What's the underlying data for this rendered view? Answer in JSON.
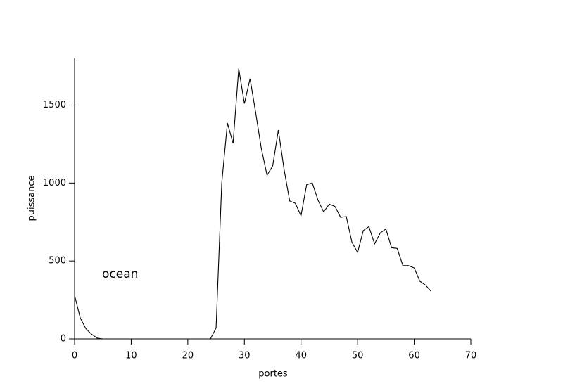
{
  "chart_data": {
    "type": "line",
    "x_label": "portes",
    "y_label": "puissance",
    "annotation": "ocean",
    "x": [
      0,
      1,
      2,
      3,
      4,
      5,
      6,
      7,
      8,
      9,
      10,
      11,
      12,
      13,
      14,
      15,
      16,
      17,
      18,
      19,
      20,
      21,
      22,
      23,
      24,
      25,
      26,
      27,
      28,
      29,
      30,
      31,
      32,
      33,
      34,
      35,
      36,
      37,
      38,
      39,
      40,
      41,
      42,
      43,
      44,
      45,
      46,
      47,
      48,
      49,
      50,
      51,
      52,
      53,
      54,
      55,
      56,
      57,
      58,
      59,
      60,
      61,
      62,
      63
    ],
    "series": [
      {
        "color": "#000000",
        "values": [
          280,
          135,
          65,
          30,
          5,
          0,
          0,
          0,
          0,
          0,
          0,
          0,
          0,
          0,
          0,
          0,
          0,
          0,
          0,
          0,
          0,
          0,
          0,
          0,
          0,
          70,
          1000,
          1385,
          1255,
          1735,
          1510,
          1670,
          1450,
          1220,
          1050,
          1110,
          1340,
          1090,
          885,
          870,
          790,
          990,
          1000,
          890,
          815,
          865,
          850,
          780,
          785,
          620,
          555,
          695,
          720,
          610,
          680,
          705,
          585,
          580,
          470,
          470,
          455,
          370,
          345,
          305
        ]
      }
    ],
    "xlim": [
      0,
      70
    ],
    "ylim": [
      0,
      1800
    ],
    "xticks": [
      0,
      10,
      20,
      30,
      40,
      50,
      60,
      70
    ],
    "yticks": [
      0,
      500,
      1000,
      1500
    ]
  }
}
